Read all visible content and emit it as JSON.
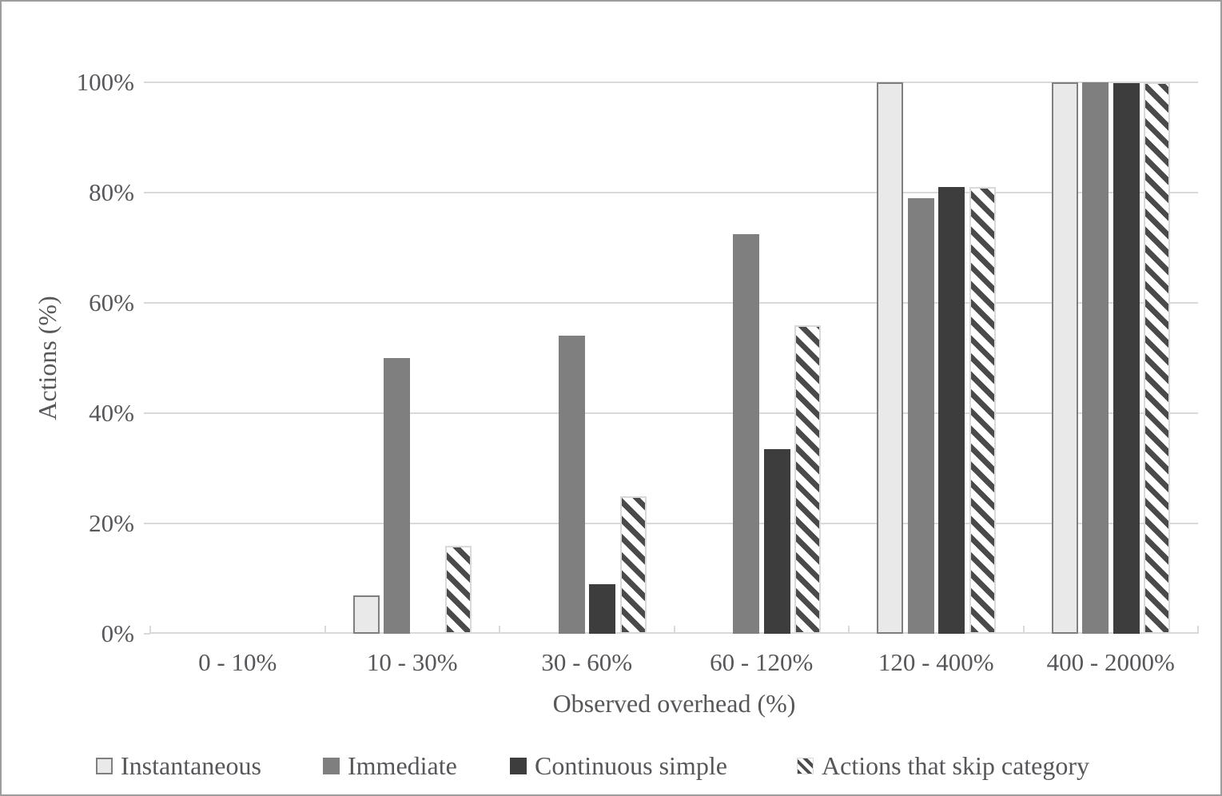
{
  "figure": {
    "background": "#ffffff",
    "frame_border_color": "#9d9d9d",
    "text_color": "#56575a",
    "gridline_color": "#d9d9d9"
  },
  "chart_data": {
    "type": "bar",
    "title": "",
    "xlabel": "Observed overhead (%)",
    "ylabel": "Actions (%)",
    "ylim": [
      0,
      100
    ],
    "yticks": [
      0,
      20,
      40,
      60,
      80,
      100
    ],
    "ytick_suffix": "%",
    "grid": true,
    "legend_position": "bottom",
    "categories": [
      "0 - 10%",
      "10 - 30%",
      "30 - 60%",
      "60 - 120%",
      "120 - 400%",
      "400 - 2000%"
    ],
    "series": [
      {
        "name": "Instantaneous",
        "pattern": "solid",
        "fill": "#e9e9e9",
        "border": "#7f7f7f",
        "values": [
          0,
          7,
          0,
          0,
          100,
          100
        ]
      },
      {
        "name": "Immediate",
        "pattern": "solid",
        "fill": "#7f7f7f",
        "border": null,
        "values": [
          0,
          50,
          54,
          72.5,
          79,
          100
        ]
      },
      {
        "name": "Continuous simple",
        "pattern": "solid",
        "fill": "#3d3d3d",
        "border": null,
        "values": [
          0,
          0,
          9,
          33.5,
          81,
          99.8
        ]
      },
      {
        "name": "Actions that skip category",
        "pattern": "diagonal-hatch",
        "fill": "#ffffff",
        "stripe": "#4a4a4a",
        "border": "#d9d9d9",
        "values": [
          0,
          16,
          25,
          56,
          81,
          100
        ]
      }
    ]
  }
}
